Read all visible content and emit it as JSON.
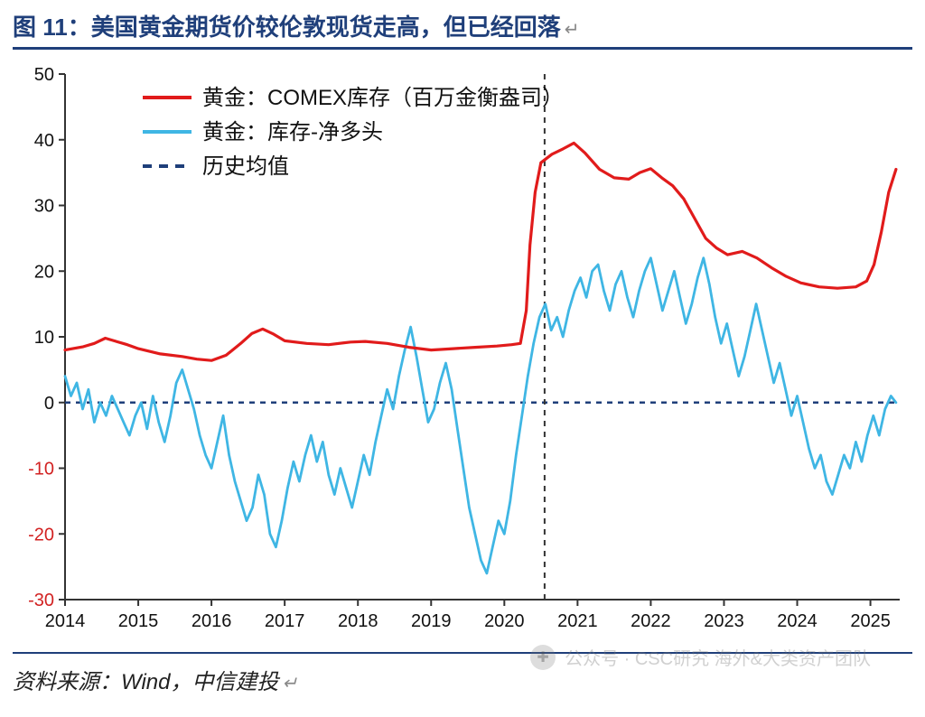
{
  "title": "图 11：美国黄金期货价较伦敦现货走高，但已经回落",
  "source": "资料来源：Wind，中信建投",
  "watermark": "公众号 · CSC研究 海外&大类资产团队",
  "chart": {
    "type": "line",
    "background_color": "#ffffff",
    "axis_color": "#333333",
    "tick_font_size": 20,
    "positive_tick_color": "#111111",
    "negative_tick_color": "#d22222",
    "x_categories": [
      "2014",
      "2015",
      "2016",
      "2017",
      "2018",
      "2019",
      "2020",
      "2021",
      "2022",
      "2023",
      "2024",
      "2025"
    ],
    "x_range": [
      2014,
      2025.4
    ],
    "y_range": [
      -30,
      50
    ],
    "y_ticks": [
      -30,
      -20,
      -10,
      0,
      10,
      20,
      30,
      40,
      50
    ],
    "y_tick_step": 10,
    "legend": {
      "position": "top-left-inside",
      "font_size": 24,
      "items": [
        {
          "label": "黄金：COMEX库存（百万金衡盎司）",
          "color": "#e11b1b",
          "style": "solid",
          "width": 3
        },
        {
          "label": "黄金：库存-净多头",
          "color": "#3fb6e4",
          "style": "solid",
          "width": 3
        },
        {
          "label": "历史均值",
          "color": "#1f3f7a",
          "style": "dash",
          "width": 3
        }
      ]
    },
    "reference_line": {
      "y": 0,
      "color": "#1f3f7a",
      "dash": "6,6",
      "width": 2.5
    },
    "vertical_marker": {
      "x": 2020.55,
      "color": "#333333",
      "dash": "6,6",
      "width": 2
    },
    "series_red": {
      "name": "黄金：COMEX库存（百万金衡盎司）",
      "color": "#e11b1b",
      "width": 3.2,
      "points": [
        [
          2014.0,
          8.0
        ],
        [
          2014.25,
          8.5
        ],
        [
          2014.4,
          9.0
        ],
        [
          2014.55,
          9.8
        ],
        [
          2014.7,
          9.3
        ],
        [
          2014.85,
          8.8
        ],
        [
          2015.0,
          8.2
        ],
        [
          2015.3,
          7.4
        ],
        [
          2015.6,
          7.0
        ],
        [
          2015.8,
          6.6
        ],
        [
          2016.0,
          6.4
        ],
        [
          2016.2,
          7.2
        ],
        [
          2016.4,
          9.0
        ],
        [
          2016.55,
          10.5
        ],
        [
          2016.7,
          11.2
        ],
        [
          2016.85,
          10.4
        ],
        [
          2017.0,
          9.4
        ],
        [
          2017.3,
          9.0
        ],
        [
          2017.6,
          8.8
        ],
        [
          2017.9,
          9.2
        ],
        [
          2018.1,
          9.3
        ],
        [
          2018.4,
          9.0
        ],
        [
          2018.7,
          8.4
        ],
        [
          2019.0,
          8.0
        ],
        [
          2019.3,
          8.2
        ],
        [
          2019.6,
          8.4
        ],
        [
          2019.9,
          8.6
        ],
        [
          2020.1,
          8.8
        ],
        [
          2020.22,
          9.0
        ],
        [
          2020.3,
          14.0
        ],
        [
          2020.35,
          24.0
        ],
        [
          2020.42,
          32.0
        ],
        [
          2020.5,
          36.5
        ],
        [
          2020.65,
          37.8
        ],
        [
          2020.8,
          38.6
        ],
        [
          2020.95,
          39.5
        ],
        [
          2021.1,
          38.0
        ],
        [
          2021.3,
          35.5
        ],
        [
          2021.5,
          34.2
        ],
        [
          2021.7,
          34.0
        ],
        [
          2021.85,
          35.0
        ],
        [
          2022.0,
          35.6
        ],
        [
          2022.15,
          34.2
        ],
        [
          2022.3,
          33.0
        ],
        [
          2022.45,
          31.0
        ],
        [
          2022.6,
          28.0
        ],
        [
          2022.75,
          25.0
        ],
        [
          2022.9,
          23.5
        ],
        [
          2023.05,
          22.5
        ],
        [
          2023.25,
          23.0
        ],
        [
          2023.45,
          22.0
        ],
        [
          2023.65,
          20.5
        ],
        [
          2023.85,
          19.2
        ],
        [
          2024.05,
          18.2
        ],
        [
          2024.3,
          17.6
        ],
        [
          2024.55,
          17.4
        ],
        [
          2024.8,
          17.6
        ],
        [
          2024.95,
          18.5
        ],
        [
          2025.05,
          21.0
        ],
        [
          2025.15,
          26.0
        ],
        [
          2025.25,
          32.0
        ],
        [
          2025.35,
          35.5
        ]
      ]
    },
    "series_blue": {
      "name": "黄金：库存-净多头",
      "color": "#3fb6e4",
      "width": 2.8,
      "points": [
        [
          2014.0,
          4.0
        ],
        [
          2014.08,
          1.0
        ],
        [
          2014.16,
          3.0
        ],
        [
          2014.24,
          -1.0
        ],
        [
          2014.32,
          2.0
        ],
        [
          2014.4,
          -3.0
        ],
        [
          2014.48,
          0.0
        ],
        [
          2014.56,
          -2.0
        ],
        [
          2014.64,
          1.0
        ],
        [
          2014.72,
          -1.0
        ],
        [
          2014.8,
          -3.0
        ],
        [
          2014.88,
          -5.0
        ],
        [
          2014.96,
          -2.0
        ],
        [
          2015.04,
          0.0
        ],
        [
          2015.12,
          -4.0
        ],
        [
          2015.2,
          1.0
        ],
        [
          2015.28,
          -3.0
        ],
        [
          2015.36,
          -6.0
        ],
        [
          2015.44,
          -2.0
        ],
        [
          2015.52,
          3.0
        ],
        [
          2015.6,
          5.0
        ],
        [
          2015.68,
          2.0
        ],
        [
          2015.76,
          -1.0
        ],
        [
          2015.84,
          -5.0
        ],
        [
          2015.92,
          -8.0
        ],
        [
          2016.0,
          -10.0
        ],
        [
          2016.08,
          -6.0
        ],
        [
          2016.16,
          -2.0
        ],
        [
          2016.24,
          -8.0
        ],
        [
          2016.32,
          -12.0
        ],
        [
          2016.4,
          -15.0
        ],
        [
          2016.48,
          -18.0
        ],
        [
          2016.56,
          -16.0
        ],
        [
          2016.64,
          -11.0
        ],
        [
          2016.72,
          -14.0
        ],
        [
          2016.8,
          -20.0
        ],
        [
          2016.88,
          -22.0
        ],
        [
          2016.96,
          -18.0
        ],
        [
          2017.04,
          -13.0
        ],
        [
          2017.12,
          -9.0
        ],
        [
          2017.2,
          -12.0
        ],
        [
          2017.28,
          -8.0
        ],
        [
          2017.36,
          -5.0
        ],
        [
          2017.44,
          -9.0
        ],
        [
          2017.52,
          -6.0
        ],
        [
          2017.6,
          -11.0
        ],
        [
          2017.68,
          -14.0
        ],
        [
          2017.76,
          -10.0
        ],
        [
          2017.84,
          -13.0
        ],
        [
          2017.92,
          -16.0
        ],
        [
          2018.0,
          -12.0
        ],
        [
          2018.08,
          -8.0
        ],
        [
          2018.16,
          -11.0
        ],
        [
          2018.24,
          -6.0
        ],
        [
          2018.32,
          -2.0
        ],
        [
          2018.4,
          2.0
        ],
        [
          2018.48,
          -1.0
        ],
        [
          2018.56,
          4.0
        ],
        [
          2018.64,
          8.0
        ],
        [
          2018.72,
          11.5
        ],
        [
          2018.8,
          7.0
        ],
        [
          2018.88,
          2.0
        ],
        [
          2018.96,
          -3.0
        ],
        [
          2019.04,
          -1.0
        ],
        [
          2019.12,
          3.0
        ],
        [
          2019.2,
          6.0
        ],
        [
          2019.28,
          2.0
        ],
        [
          2019.36,
          -4.0
        ],
        [
          2019.44,
          -10.0
        ],
        [
          2019.52,
          -16.0
        ],
        [
          2019.6,
          -20.0
        ],
        [
          2019.68,
          -24.0
        ],
        [
          2019.76,
          -26.0
        ],
        [
          2019.84,
          -22.0
        ],
        [
          2019.92,
          -18.0
        ],
        [
          2020.0,
          -20.0
        ],
        [
          2020.08,
          -15.0
        ],
        [
          2020.16,
          -8.0
        ],
        [
          2020.24,
          -2.0
        ],
        [
          2020.32,
          4.0
        ],
        [
          2020.4,
          9.0
        ],
        [
          2020.48,
          13.0
        ],
        [
          2020.56,
          15.0
        ],
        [
          2020.64,
          11.0
        ],
        [
          2020.72,
          13.0
        ],
        [
          2020.8,
          10.0
        ],
        [
          2020.88,
          14.0
        ],
        [
          2020.96,
          17.0
        ],
        [
          2021.04,
          19.0
        ],
        [
          2021.12,
          16.0
        ],
        [
          2021.2,
          20.0
        ],
        [
          2021.28,
          21.0
        ],
        [
          2021.36,
          17.0
        ],
        [
          2021.44,
          14.0
        ],
        [
          2021.52,
          18.0
        ],
        [
          2021.6,
          20.0
        ],
        [
          2021.68,
          16.0
        ],
        [
          2021.76,
          13.0
        ],
        [
          2021.84,
          17.0
        ],
        [
          2021.92,
          20.0
        ],
        [
          2022.0,
          22.0
        ],
        [
          2022.08,
          18.0
        ],
        [
          2022.16,
          14.0
        ],
        [
          2022.24,
          17.0
        ],
        [
          2022.32,
          20.0
        ],
        [
          2022.4,
          16.0
        ],
        [
          2022.48,
          12.0
        ],
        [
          2022.56,
          15.0
        ],
        [
          2022.64,
          19.0
        ],
        [
          2022.72,
          22.0
        ],
        [
          2022.8,
          18.0
        ],
        [
          2022.88,
          13.0
        ],
        [
          2022.96,
          9.0
        ],
        [
          2023.04,
          12.0
        ],
        [
          2023.12,
          8.0
        ],
        [
          2023.2,
          4.0
        ],
        [
          2023.28,
          7.0
        ],
        [
          2023.36,
          11.0
        ],
        [
          2023.44,
          15.0
        ],
        [
          2023.52,
          11.0
        ],
        [
          2023.6,
          7.0
        ],
        [
          2023.68,
          3.0
        ],
        [
          2023.76,
          6.0
        ],
        [
          2023.84,
          2.0
        ],
        [
          2023.92,
          -2.0
        ],
        [
          2024.0,
          1.0
        ],
        [
          2024.08,
          -3.0
        ],
        [
          2024.16,
          -7.0
        ],
        [
          2024.24,
          -10.0
        ],
        [
          2024.32,
          -8.0
        ],
        [
          2024.4,
          -12.0
        ],
        [
          2024.48,
          -14.0
        ],
        [
          2024.56,
          -11.0
        ],
        [
          2024.64,
          -8.0
        ],
        [
          2024.72,
          -10.0
        ],
        [
          2024.8,
          -6.0
        ],
        [
          2024.88,
          -9.0
        ],
        [
          2024.96,
          -5.0
        ],
        [
          2025.04,
          -2.0
        ],
        [
          2025.12,
          -5.0
        ],
        [
          2025.2,
          -1.0
        ],
        [
          2025.28,
          1.0
        ],
        [
          2025.35,
          0.0
        ]
      ]
    }
  }
}
